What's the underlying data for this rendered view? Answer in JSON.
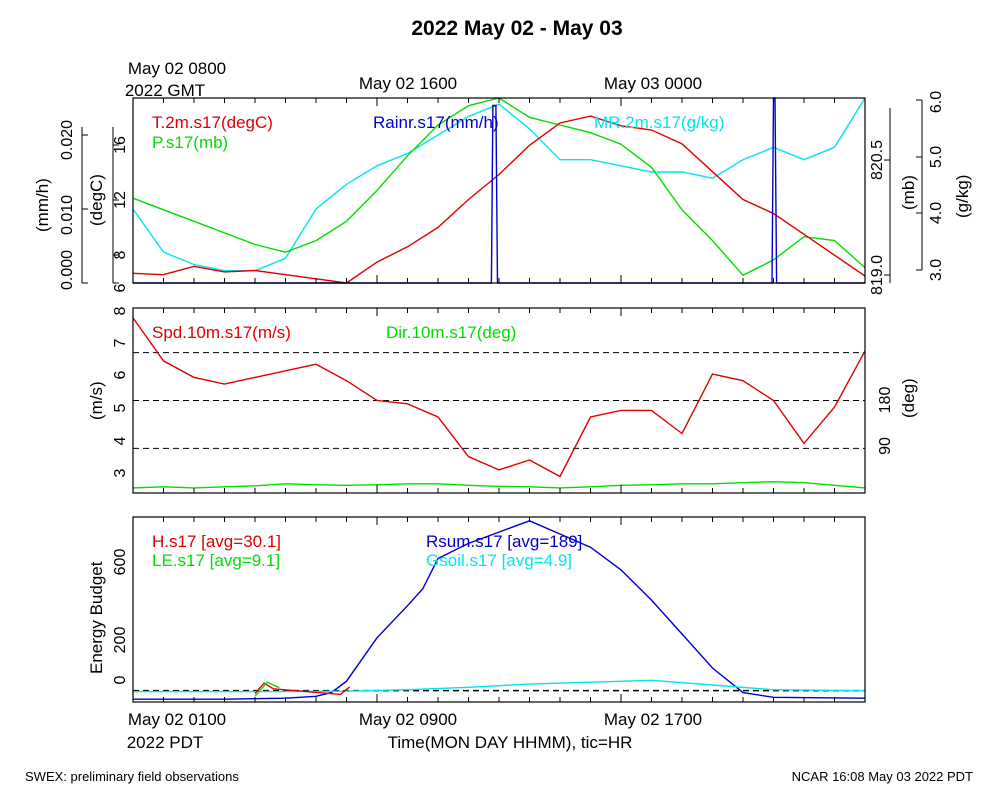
{
  "title": "2022 May 02 - May 03",
  "x_axis": {
    "top_labels": [
      {
        "line1": "May 02 0800",
        "line2": "2022 GMT"
      },
      {
        "line1": "May 02 1600",
        "line2": ""
      },
      {
        "line1": "May 03 0000",
        "line2": ""
      }
    ],
    "bottom_labels": [
      {
        "line1": "May 02 0100",
        "line2": "2022 PDT"
      },
      {
        "line1": "May 02 0900",
        "line2": ""
      },
      {
        "line1": "May 02 1700",
        "line2": ""
      }
    ],
    "label": "Time(MON DAY HHMM), tic=HR",
    "range_hours_pdt": [
      1,
      25
    ]
  },
  "footer": {
    "left": "SWEX: preliminary field observations",
    "right": "NCAR 16:08 May 03 2022 PDT"
  },
  "colors": {
    "red": "#e00000",
    "green": "#00dd00",
    "blue": "#0000cc",
    "cyan": "#00e5ee",
    "black": "#000000"
  },
  "chart_data": [
    {
      "type": "line",
      "panel": "top",
      "legend": [
        {
          "text": "T.2m.s17(degC)",
          "color": "#e00000"
        },
        {
          "text": "P.s17(mb)",
          "color": "#00dd00"
        },
        {
          "text": "Rainr.s17(mm/h)",
          "color": "#0000cc"
        },
        {
          "text": "MR.2m.s17(g/kg)",
          "color": "#00e5ee"
        }
      ],
      "axes": {
        "rain": {
          "label": "(mm/h)",
          "ticks": [
            "0.000",
            "0.010",
            "0.020"
          ],
          "range": [
            0,
            0.025
          ]
        },
        "temp": {
          "label": "(degC)",
          "ticks": [
            "6",
            "8",
            "12",
            "16"
          ],
          "range": [
            6,
            19.3
          ]
        },
        "pressure": {
          "label": "(mb)",
          "ticks": [
            "819.0",
            "820.5"
          ],
          "range": [
            818.9,
            821.3
          ]
        },
        "mixing_ratio": {
          "label": "(g/kg)",
          "ticks": [
            "3.0",
            "4.0",
            "5.0",
            "6.0"
          ],
          "range": [
            3.0,
            6.0
          ]
        }
      },
      "series": [
        {
          "name": "T.2m.s17(degC)",
          "axis": "temp",
          "x": [
            1,
            2,
            3,
            4,
            5,
            6,
            7,
            8,
            9,
            10,
            11,
            12,
            13,
            14,
            15,
            16,
            17,
            18,
            19,
            20,
            21,
            22,
            23,
            24,
            25
          ],
          "values": [
            6.7,
            6.6,
            7.2,
            6.8,
            6.9,
            6.6,
            6.3,
            6.0,
            7.5,
            8.6,
            10.0,
            12.0,
            13.8,
            15.9,
            17.5,
            18.0,
            17.3,
            17.0,
            16.0,
            14.0,
            12.0,
            11.0,
            9.5,
            8.0,
            6.5
          ]
        },
        {
          "name": "P.s17(mb)",
          "axis": "pressure",
          "x": [
            1,
            2,
            3,
            4,
            5,
            6,
            7,
            8,
            9,
            10,
            11,
            12,
            13,
            14,
            15,
            16,
            17,
            18,
            19,
            20,
            21,
            22,
            23,
            24,
            25
          ],
          "values": [
            820.0,
            819.85,
            819.7,
            819.55,
            819.4,
            819.3,
            819.45,
            819.7,
            820.1,
            820.55,
            820.95,
            821.2,
            821.3,
            821.05,
            820.95,
            820.85,
            820.7,
            820.4,
            819.85,
            819.45,
            819.0,
            819.2,
            819.5,
            819.45,
            819.1
          ]
        },
        {
          "name": "Rainr.s17(mm/h)",
          "axis": "rain",
          "x": [
            1,
            12.75,
            12.8,
            12.9,
            12.95,
            21.95,
            22.0,
            22.05,
            22.1,
            25
          ],
          "values": [
            0,
            0,
            0.024,
            0.024,
            0,
            0,
            0.025,
            0.025,
            0,
            0
          ]
        },
        {
          "name": "MR.2m.s17(g/kg)",
          "axis": "mixing_ratio",
          "x": [
            1,
            2,
            3,
            4,
            5,
            6,
            7,
            8,
            9,
            10,
            11,
            12,
            13,
            14,
            15,
            16,
            17,
            18,
            19,
            20,
            21,
            22,
            23,
            24,
            25
          ],
          "values": [
            4.2,
            3.5,
            3.3,
            3.2,
            3.2,
            3.4,
            4.2,
            4.6,
            4.9,
            5.1,
            5.4,
            5.7,
            5.9,
            5.5,
            5.0,
            5.0,
            4.9,
            4.8,
            4.8,
            4.7,
            5.0,
            5.2,
            5.0,
            5.2,
            6.0
          ]
        }
      ]
    },
    {
      "type": "line",
      "panel": "middle",
      "legend": [
        {
          "text": "Spd.10m.s17(m/s)",
          "color": "#e00000"
        },
        {
          "text": "Dir.10m.s17(deg)",
          "color": "#00dd00"
        }
      ],
      "axes": {
        "speed": {
          "label": "(m/s)",
          "ticks": [
            "3",
            "4",
            "5",
            "6",
            "7",
            "8"
          ],
          "range": [
            2.5,
            8.1
          ]
        },
        "direction": {
          "label": "(deg)",
          "ticks": [
            "90",
            "180"
          ],
          "range": [
            0,
            360
          ]
        }
      },
      "reference_lines_speed": [
        3.85,
        5.3,
        6.75
      ],
      "series": [
        {
          "name": "Spd.10m.s17(m/s)",
          "axis": "speed",
          "x": [
            1,
            2,
            3,
            4,
            5,
            6,
            7,
            8,
            9,
            10,
            11,
            12,
            13,
            14,
            15,
            16,
            17,
            18,
            19,
            20,
            21,
            22,
            23,
            24,
            25
          ],
          "values": [
            7.8,
            6.5,
            6.0,
            5.8,
            6.0,
            6.2,
            6.4,
            5.9,
            5.3,
            5.2,
            4.8,
            3.6,
            3.2,
            3.5,
            3.0,
            4.8,
            5.0,
            5.0,
            4.3,
            6.1,
            5.9,
            5.3,
            4.0,
            5.1,
            6.8
          ]
        },
        {
          "name": "Dir.10m.s17(deg)",
          "axis": "direction",
          "x": [
            1,
            2,
            3,
            4,
            5,
            6,
            7,
            8,
            9,
            10,
            11,
            12,
            13,
            14,
            15,
            16,
            17,
            18,
            19,
            20,
            21,
            22,
            23,
            24,
            25
          ],
          "values": [
            10,
            12,
            10,
            12,
            14,
            18,
            16,
            15,
            16,
            18,
            18,
            15,
            13,
            12,
            10,
            12,
            15,
            16,
            18,
            18,
            20,
            22,
            20,
            15,
            10
          ]
        }
      ]
    },
    {
      "type": "line",
      "panel": "bottom",
      "ylabel": "Energy Budget",
      "ticks": [
        "0",
        "200",
        "600"
      ],
      "ylim": [
        -60,
        920
      ],
      "reference_line": 0,
      "legend": [
        {
          "text": "H.s17 [avg=30.1]",
          "color": "#e00000"
        },
        {
          "text": "LE.s17 [avg=9.1]",
          "color": "#00dd00"
        },
        {
          "text": "Rsum.s17 [avg=189]",
          "color": "#0000cc"
        },
        {
          "text": "Gsoil.s17 [avg=4.9]",
          "color": "#00e5ee"
        }
      ],
      "series": [
        {
          "name": "Rsum.s17 [avg=189]",
          "x": [
            1,
            4,
            6,
            7,
            7.5,
            8,
            9,
            10,
            10.5,
            11,
            12,
            13,
            14,
            15,
            16,
            17,
            18,
            19,
            20,
            21,
            22,
            25
          ],
          "values": [
            -45,
            -45,
            -40,
            -30,
            -10,
            50,
            280,
            450,
            540,
            700,
            780,
            840,
            900,
            830,
            760,
            640,
            480,
            300,
            120,
            -10,
            -35,
            -40
          ]
        },
        {
          "name": "Gsoil.s17 [avg=4.9]",
          "x": [
            1,
            6,
            8,
            10,
            12,
            14,
            16,
            18,
            20,
            22,
            25
          ],
          "values": [
            -5,
            -5,
            -3,
            5,
            18,
            35,
            45,
            55,
            30,
            5,
            0
          ]
        },
        {
          "name": "H.s17 [avg=30.1]",
          "x": [
            5,
            5.3,
            5.6,
            7.8,
            8.1
          ],
          "values": [
            -15,
            40,
            10,
            -20,
            20
          ]
        },
        {
          "name": "LE.s17 [avg=9.1]",
          "x": [
            5,
            5.4,
            5.8
          ],
          "values": [
            -30,
            45,
            15
          ]
        }
      ]
    }
  ]
}
